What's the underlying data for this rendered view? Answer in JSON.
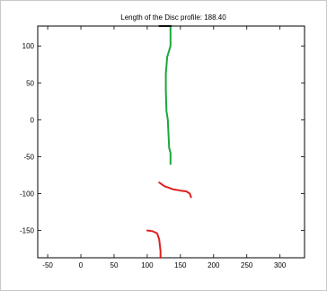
{
  "chart_data": {
    "type": "line",
    "title": "Length of the Disc profile: 188.40",
    "xlabel": "",
    "ylabel": "",
    "xlim": [
      -65,
      337
    ],
    "ylim": [
      -187,
      127
    ],
    "grid": false,
    "x_ticks": [
      -50,
      0,
      50,
      100,
      150,
      200,
      250,
      300
    ],
    "y_ticks": [
      100,
      50,
      0,
      -50,
      -100,
      -150
    ],
    "series": [
      {
        "color": "#1aa83c",
        "points": [
          [
            135,
            127
          ],
          [
            135,
            100
          ],
          [
            130,
            85
          ],
          [
            128,
            62
          ],
          [
            128,
            40
          ],
          [
            129,
            12
          ],
          [
            131,
            0
          ],
          [
            132,
            -18
          ],
          [
            133,
            -38
          ],
          [
            135,
            -45
          ],
          [
            135,
            -60
          ]
        ]
      },
      {
        "color": "#e02020",
        "points": [
          [
            118,
            -85
          ],
          [
            126,
            -90
          ],
          [
            138,
            -94
          ],
          [
            150,
            -96
          ],
          [
            159,
            -97
          ],
          [
            164,
            -100
          ],
          [
            166,
            -105
          ]
        ]
      },
      {
        "color": "#e02020",
        "points": [
          [
            100,
            -150
          ],
          [
            108,
            -151
          ],
          [
            115,
            -154
          ],
          [
            118,
            -162
          ],
          [
            120,
            -178
          ],
          [
            120,
            -187
          ]
        ]
      },
      {
        "color": "#111111",
        "points": [
          [
            118,
            127
          ],
          [
            136,
            127
          ]
        ]
      }
    ]
  }
}
